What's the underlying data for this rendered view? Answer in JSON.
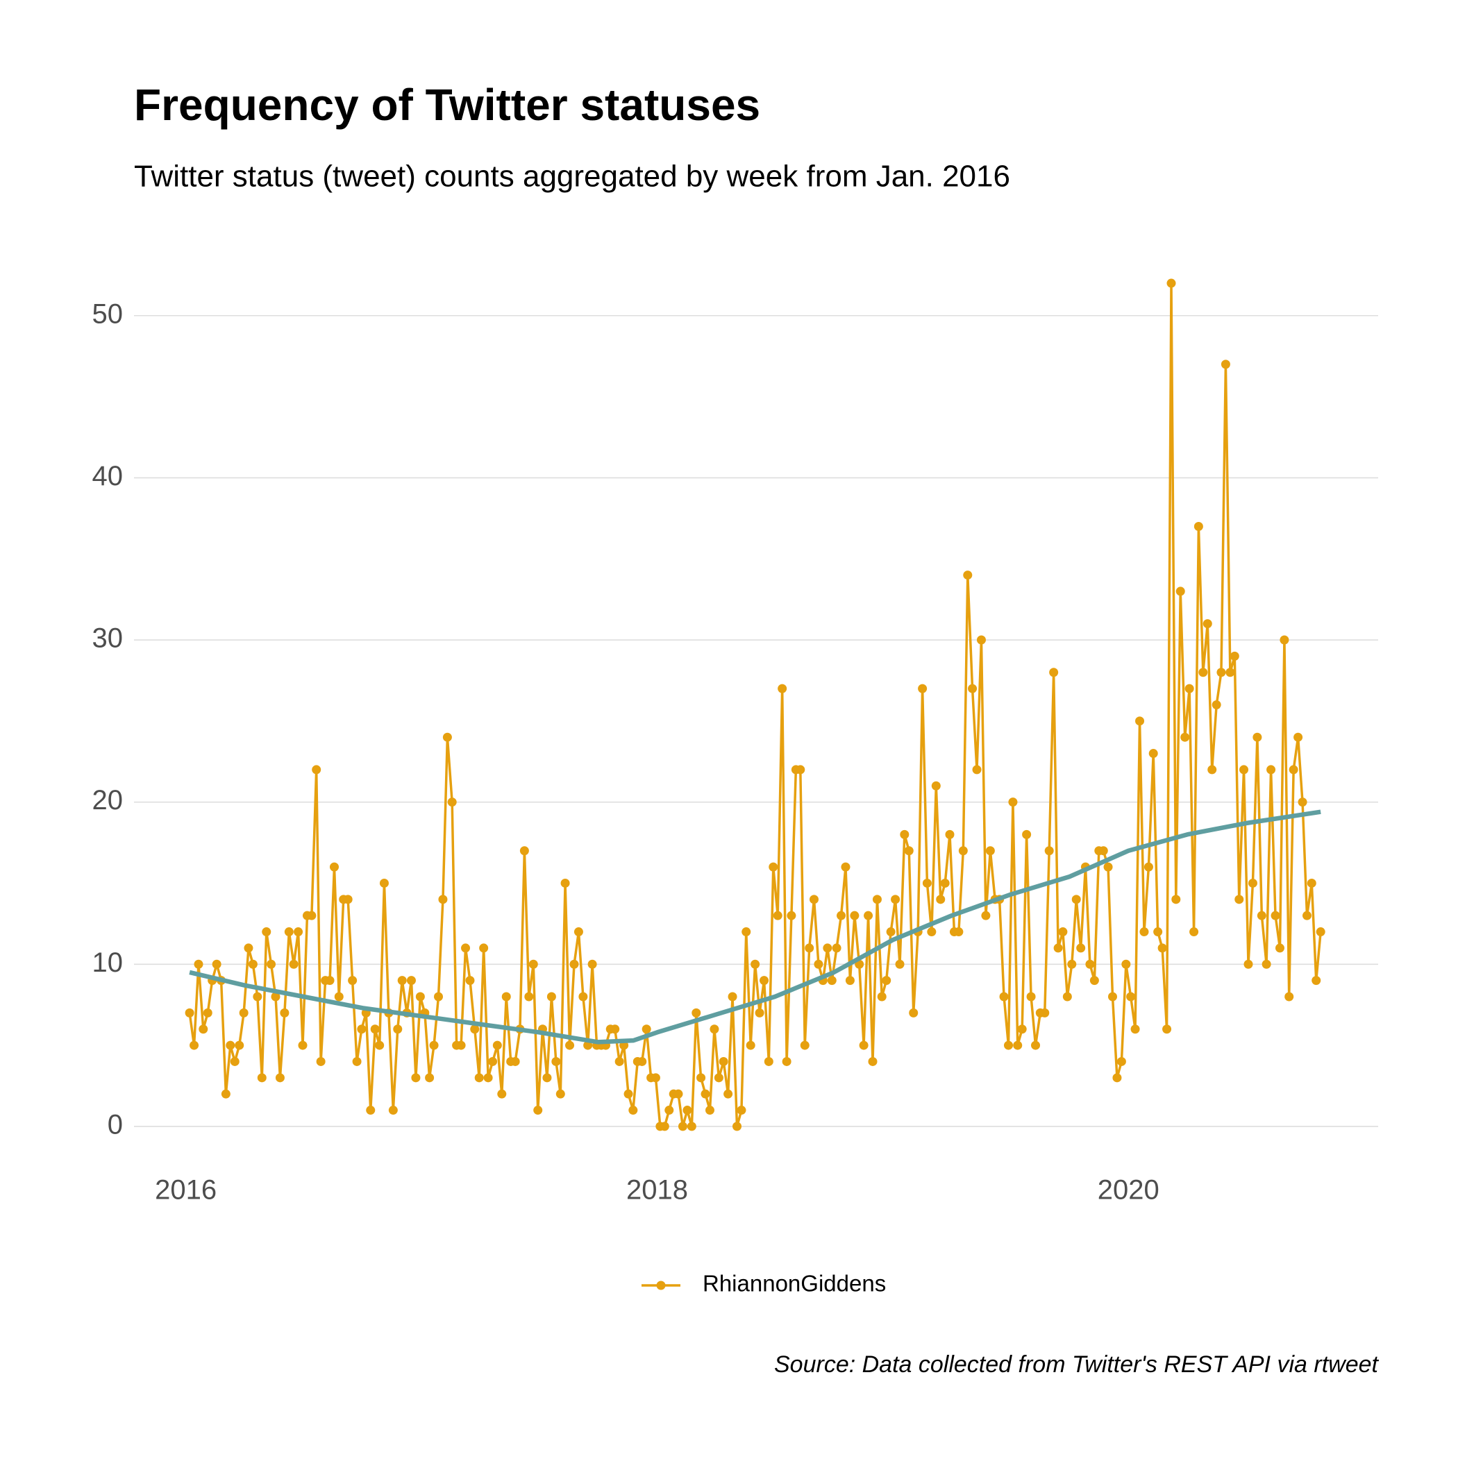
{
  "chart_data": {
    "type": "line",
    "title": "Frequency of Twitter statuses",
    "subtitle": "Twitter status (tweet) counts aggregated by week from Jan. 2016",
    "caption": "Source: Data collected from Twitter's REST API via rtweet",
    "x": [
      2016.016,
      2016.035,
      2016.054,
      2016.074,
      2016.093,
      2016.112,
      2016.131,
      2016.15,
      2016.17,
      2016.189,
      2016.208,
      2016.227,
      2016.246,
      2016.266,
      2016.285,
      2016.304,
      2016.323,
      2016.342,
      2016.362,
      2016.381,
      2016.4,
      2016.419,
      2016.438,
      2016.458,
      2016.477,
      2016.496,
      2016.515,
      2016.534,
      2016.554,
      2016.573,
      2016.592,
      2016.611,
      2016.63,
      2016.65,
      2016.669,
      2016.688,
      2016.707,
      2016.726,
      2016.746,
      2016.765,
      2016.784,
      2016.803,
      2016.822,
      2016.842,
      2016.861,
      2016.88,
      2016.899,
      2016.918,
      2016.938,
      2016.957,
      2016.976,
      2016.995,
      2017.014,
      2017.034,
      2017.053,
      2017.072,
      2017.091,
      2017.11,
      2017.13,
      2017.149,
      2017.168,
      2017.187,
      2017.206,
      2017.226,
      2017.245,
      2017.264,
      2017.283,
      2017.302,
      2017.322,
      2017.341,
      2017.36,
      2017.379,
      2017.398,
      2017.418,
      2017.437,
      2017.456,
      2017.475,
      2017.494,
      2017.514,
      2017.533,
      2017.552,
      2017.571,
      2017.59,
      2017.61,
      2017.629,
      2017.648,
      2017.667,
      2017.686,
      2017.706,
      2017.725,
      2017.744,
      2017.763,
      2017.782,
      2017.802,
      2017.821,
      2017.84,
      2017.859,
      2017.878,
      2017.898,
      2017.917,
      2017.936,
      2017.955,
      2017.974,
      2017.994,
      2018.013,
      2018.032,
      2018.051,
      2018.07,
      2018.09,
      2018.109,
      2018.128,
      2018.147,
      2018.166,
      2018.186,
      2018.205,
      2018.224,
      2018.243,
      2018.262,
      2018.282,
      2018.301,
      2018.32,
      2018.339,
      2018.358,
      2018.378,
      2018.397,
      2018.416,
      2018.435,
      2018.454,
      2018.474,
      2018.493,
      2018.512,
      2018.531,
      2018.55,
      2018.57,
      2018.589,
      2018.608,
      2018.627,
      2018.646,
      2018.666,
      2018.685,
      2018.704,
      2018.723,
      2018.742,
      2018.762,
      2018.781,
      2018.8,
      2018.819,
      2018.838,
      2018.858,
      2018.877,
      2018.896,
      2018.915,
      2018.934,
      2018.954,
      2018.973,
      2018.992,
      2019.011,
      2019.03,
      2019.05,
      2019.069,
      2019.088,
      2019.107,
      2019.126,
      2019.146,
      2019.165,
      2019.184,
      2019.203,
      2019.222,
      2019.242,
      2019.261,
      2019.28,
      2019.299,
      2019.318,
      2019.338,
      2019.357,
      2019.376,
      2019.395,
      2019.414,
      2019.434,
      2019.453,
      2019.472,
      2019.491,
      2019.51,
      2019.53,
      2019.549,
      2019.568,
      2019.587,
      2019.606,
      2019.626,
      2019.645,
      2019.664,
      2019.683,
      2019.702,
      2019.722,
      2019.741,
      2019.76,
      2019.779,
      2019.798,
      2019.818,
      2019.837,
      2019.856,
      2019.875,
      2019.894,
      2019.914,
      2019.933,
      2019.952,
      2019.971,
      2019.99,
      2020.01,
      2020.029,
      2020.048,
      2020.067,
      2020.086,
      2020.106,
      2020.125,
      2020.144,
      2020.163,
      2020.182,
      2020.202,
      2020.221,
      2020.24,
      2020.259,
      2020.278,
      2020.298,
      2020.317,
      2020.336,
      2020.355,
      2020.374,
      2020.394,
      2020.413,
      2020.432,
      2020.451,
      2020.47,
      2020.49,
      2020.509,
      2020.528,
      2020.547,
      2020.566,
      2020.586,
      2020.605,
      2020.624,
      2020.643,
      2020.662,
      2020.682,
      2020.701,
      2020.72,
      2020.739,
      2020.758,
      2020.778,
      2020.797,
      2020.816
    ],
    "series": [
      {
        "name": "RhiannonGiddens",
        "color": "#e6a00f",
        "values": [
          7,
          5,
          10,
          6,
          7,
          9,
          10,
          9,
          2,
          5,
          4,
          5,
          7,
          11,
          10,
          8,
          3,
          12,
          10,
          8,
          3,
          7,
          12,
          10,
          12,
          5,
          13,
          13,
          22,
          4,
          9,
          9,
          16,
          8,
          14,
          14,
          9,
          4,
          6,
          7,
          1,
          6,
          5,
          15,
          7,
          1,
          6,
          9,
          7,
          9,
          3,
          8,
          7,
          3,
          5,
          8,
          14,
          24,
          20,
          5,
          5,
          11,
          9,
          6,
          3,
          11,
          3,
          4,
          5,
          2,
          8,
          4,
          4,
          6,
          17,
          8,
          10,
          1,
          6,
          3,
          8,
          4,
          2,
          15,
          5,
          10,
          12,
          8,
          5,
          10,
          5,
          5,
          5,
          6,
          6,
          4,
          5,
          2,
          1,
          4,
          4,
          6,
          3,
          3,
          0,
          0,
          1,
          2,
          2,
          0,
          1,
          0,
          7,
          3,
          2,
          1,
          6,
          3,
          4,
          2,
          8,
          0,
          1,
          12,
          5,
          10,
          7,
          9,
          4,
          16,
          13,
          27,
          4,
          13,
          22,
          22,
          5,
          11,
          14,
          10,
          9,
          11,
          9,
          11,
          13,
          16,
          9,
          13,
          10,
          5,
          13,
          4,
          14,
          8,
          9,
          12,
          14,
          10,
          18,
          17,
          7,
          12,
          27,
          15,
          12,
          21,
          14,
          15,
          18,
          12,
          12,
          17,
          34,
          27,
          22,
          30,
          13,
          17,
          14,
          14,
          8,
          5,
          20,
          5,
          6,
          18,
          8,
          5,
          7,
          7,
          17,
          28,
          11,
          12,
          8,
          10,
          14,
          11,
          16,
          10,
          9,
          17,
          17,
          16,
          8,
          3,
          4,
          10,
          8,
          6,
          25,
          12,
          16,
          23,
          12,
          11,
          6,
          52,
          14,
          33,
          24,
          27,
          12,
          37,
          28,
          31,
          22,
          26,
          28,
          47,
          28,
          29,
          14,
          22,
          10,
          15,
          24,
          13,
          10,
          22,
          13,
          11,
          30,
          8,
          22,
          24,
          20,
          13,
          15,
          9,
          12
        ]
      }
    ],
    "smooth": {
      "color": "#5f9ea0",
      "x": [
        2016.016,
        2016.25,
        2016.5,
        2016.75,
        2017.0,
        2017.25,
        2017.5,
        2017.75,
        2017.9,
        2018.0,
        2018.25,
        2018.5,
        2018.75,
        2019.0,
        2019.25,
        2019.5,
        2019.75,
        2020.0,
        2020.25,
        2020.5,
        2020.816
      ],
      "values": [
        9.5,
        8.7,
        8.0,
        7.3,
        6.8,
        6.3,
        5.8,
        5.2,
        5.3,
        5.8,
        6.9,
        8.0,
        9.5,
        11.5,
        13.0,
        14.3,
        15.4,
        17.0,
        18.0,
        18.7,
        19.4
      ]
    },
    "xlim": [
      2015.78,
      2021.06
    ],
    "xticks": [
      2016,
      2018,
      2020
    ],
    "ylim": [
      -3.3,
      53.2
    ],
    "yticks": [
      0,
      10,
      20,
      30,
      40,
      50
    ],
    "grid": true,
    "legend": "bottom"
  }
}
